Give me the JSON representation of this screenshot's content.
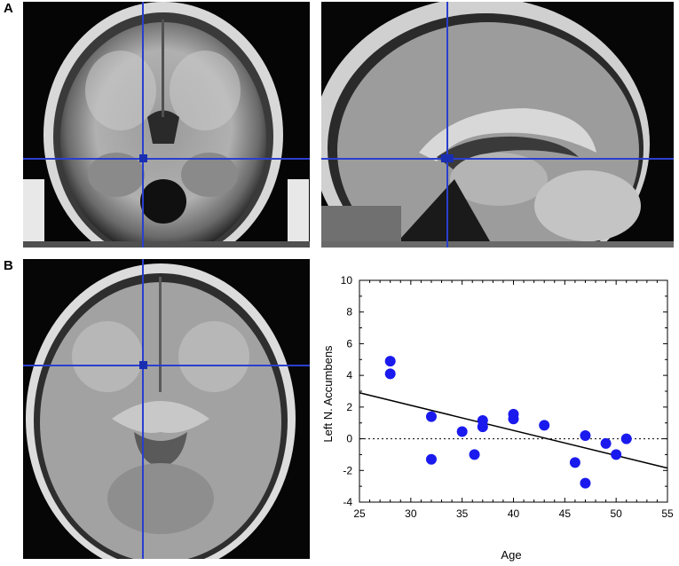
{
  "panels": {
    "a_label": "A",
    "b_label": "B"
  },
  "images": {
    "coronal": {
      "view": "coronal",
      "crosshair": "blue"
    },
    "sagittal": {
      "view": "sagittal",
      "crosshair": "blue"
    },
    "axial": {
      "view": "axial",
      "crosshair": "blue"
    }
  },
  "colors": {
    "crosshair": "#2a3fd0",
    "points": "#1a1aee",
    "fit_line": "#000000"
  },
  "chart_data": {
    "type": "scatter",
    "xlabel": "Age",
    "ylabel": "Left N. Accumbens",
    "xlim": [
      25,
      55
    ],
    "ylim": [
      -4,
      10
    ],
    "xticks": [
      25,
      30,
      35,
      40,
      45,
      50,
      55
    ],
    "yticks": [
      -4,
      -2,
      0,
      2,
      4,
      6,
      8,
      10
    ],
    "x": [
      28,
      28,
      32,
      32,
      35,
      36.2,
      37,
      37,
      40,
      40,
      43,
      46,
      47,
      47,
      49,
      50,
      51
    ],
    "y": [
      4.9,
      4.1,
      1.4,
      -1.3,
      0.45,
      -1.0,
      1.15,
      0.75,
      1.55,
      1.25,
      0.85,
      -1.5,
      0.2,
      -2.8,
      -0.3,
      -1.0,
      0.0
    ],
    "fit_line": {
      "x": [
        25,
        55
      ],
      "y": [
        2.9,
        -1.85
      ]
    },
    "reference_line_y": 0
  }
}
